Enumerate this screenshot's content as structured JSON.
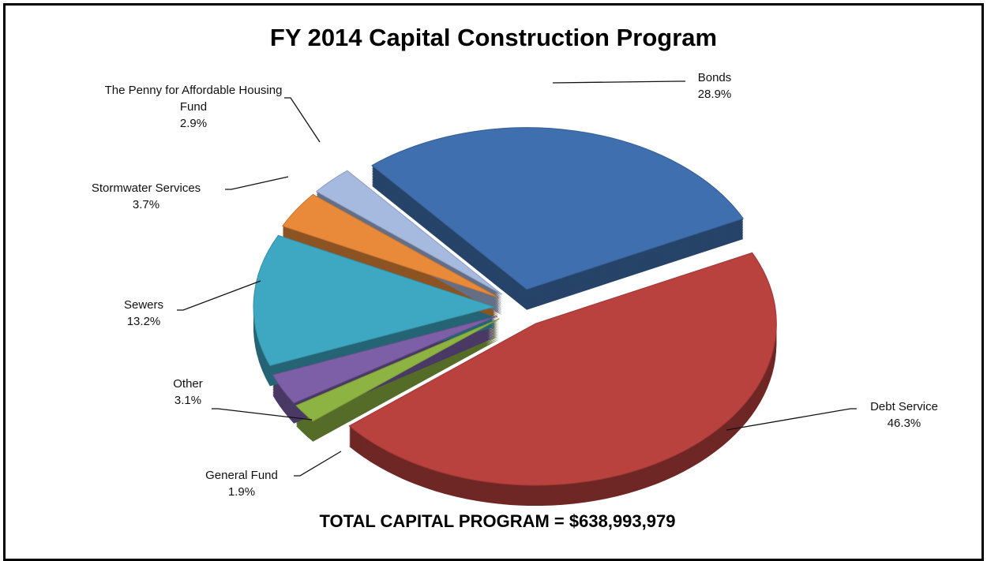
{
  "chart_data": {
    "type": "pie",
    "title": "FY 2014 Capital Construction Program",
    "categories": [
      "Bonds",
      "Debt Service",
      "General Fund",
      "Other",
      "Sewers",
      "Stormwater Services",
      "The Penny for Affordable Housing Fund"
    ],
    "values": [
      28.9,
      46.3,
      1.9,
      3.1,
      13.2,
      3.7,
      2.9
    ],
    "value_labels": [
      "28.9%",
      "46.3%",
      "1.9%",
      "3.1%",
      "13.2%",
      "3.7%",
      "2.9%"
    ],
    "colors": [
      "#3f6fae",
      "#b9413e",
      "#8db443",
      "#7c5fa6",
      "#3ea7c1",
      "#e98a3b",
      "#a6b9df"
    ],
    "annotation": "TOTAL CAPITAL PROGRAM = $638,993,979"
  }
}
